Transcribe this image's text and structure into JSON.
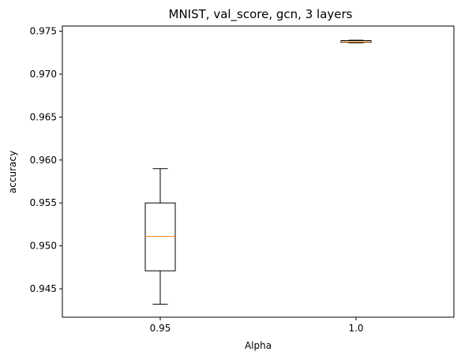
{
  "chart_data": {
    "type": "box",
    "title": "MNIST, val_score, gcn, 3 layers",
    "xlabel": "Alpha",
    "ylabel": "accuracy",
    "ylim": [
      0.9417,
      0.9756
    ],
    "yticks": [
      0.945,
      0.95,
      0.955,
      0.96,
      0.965,
      0.97,
      0.975
    ],
    "ytick_labels": [
      "0.945",
      "0.950",
      "0.955",
      "0.960",
      "0.965",
      "0.970",
      "0.975"
    ],
    "categories": [
      "0.95",
      "1.0"
    ],
    "boxes": [
      {
        "category": "0.95",
        "whisker_low": 0.9432,
        "q1": 0.9471,
        "median": 0.9511,
        "q3": 0.955,
        "whisker_high": 0.959
      },
      {
        "category": "1.0",
        "whisker_low": 0.97365,
        "q1": 0.9737,
        "median": 0.97375,
        "q3": 0.9739,
        "whisker_high": 0.97395
      }
    ],
    "colors": {
      "box": "#000000",
      "median": "#ff7f0e"
    },
    "grid": false
  }
}
